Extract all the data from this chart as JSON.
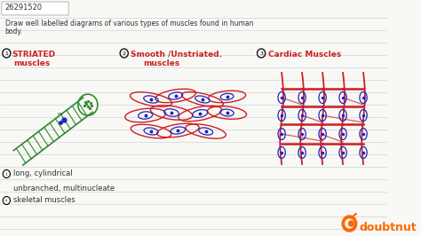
{
  "bg_color": "#f8f8f5",
  "title_id": "26291520",
  "question_line1": "Draw well labelled diagrams of various types of muscles found in human",
  "question_line2": "body.",
  "section1_title": "STRIATED",
  "section1_sub": "muscles",
  "section2_title": "Smooth /Unstriated.",
  "section2_sub": "muscles",
  "section3_title": "Cardiac Muscles",
  "bottom_label1": "long, cylindrical",
  "bottom_label2": "unbranched, multinucleate",
  "bottom_label3": "skeletal muscles",
  "green": "#2d8a2d",
  "red": "#cc2020",
  "blue": "#2222bb",
  "dark": "#333333",
  "watermark": "doubtnut",
  "watermark_color": "#ff6600",
  "ruled_line_color": "#c8c8d8",
  "box_color": "#ffffff"
}
